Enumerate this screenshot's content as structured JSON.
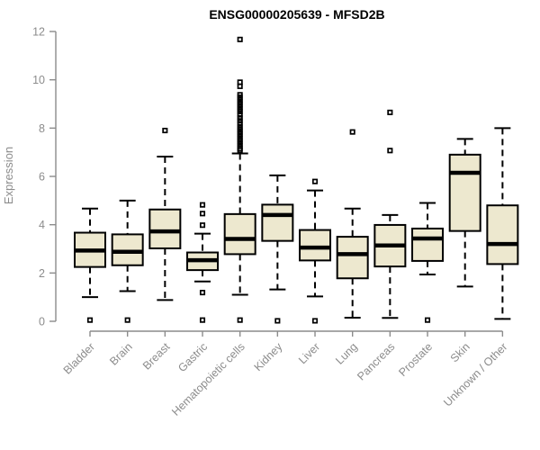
{
  "chart_data": {
    "type": "box",
    "title": "ENSG00000205639 - MFSD2B",
    "ylabel": "Expression",
    "xlabel": "",
    "ylim": [
      0,
      12
    ],
    "yticks": [
      0,
      2,
      4,
      6,
      8,
      10,
      12
    ],
    "grid": false,
    "legend": "none",
    "box_fill_color": "#ede8cf",
    "box_stroke_color": "#000000",
    "axis_color": "#8c8c8c",
    "title_color": "#000000",
    "categories": [
      "Bladder",
      "Brain",
      "Breast",
      "Gastric",
      "Hematopoietic cells",
      "Kidney",
      "Liver",
      "Lung",
      "Pancreas",
      "Prostate",
      "Skin",
      "Unknown / Other"
    ],
    "series": [
      {
        "name": "Bladder",
        "whisker_low": 1.0,
        "q1": 2.25,
        "median": 2.93,
        "q3": 3.67,
        "whisker_high": 4.67,
        "outliers": [
          0.05
        ]
      },
      {
        "name": "Brain",
        "whisker_low": 1.25,
        "q1": 2.32,
        "median": 2.88,
        "q3": 3.6,
        "whisker_high": 5.0,
        "outliers": [
          0.05
        ]
      },
      {
        "name": "Breast",
        "whisker_low": 0.88,
        "q1": 3.02,
        "median": 3.72,
        "q3": 4.63,
        "whisker_high": 6.82,
        "outliers": [
          7.9
        ]
      },
      {
        "name": "Gastric",
        "whisker_low": 1.65,
        "q1": 2.12,
        "median": 2.53,
        "q3": 2.85,
        "whisker_high": 3.63,
        "outliers": [
          4.82,
          4.46,
          3.98,
          1.19,
          0.05
        ]
      },
      {
        "name": "Hematopoietic cells",
        "whisker_low": 1.1,
        "q1": 2.78,
        "median": 3.41,
        "q3": 4.44,
        "whisker_high": 6.95,
        "outliers": [
          11.67,
          9.9,
          9.73,
          9.38,
          9.28,
          9.18,
          9.08,
          8.98,
          8.88,
          8.78,
          8.68,
          8.55,
          8.42,
          8.3,
          8.18,
          8.05,
          7.95,
          7.85,
          7.75,
          7.65,
          7.55,
          7.45,
          7.35,
          7.25,
          7.15,
          7.08,
          0.05
        ]
      },
      {
        "name": "Kidney",
        "whisker_low": 1.32,
        "q1": 3.33,
        "median": 4.4,
        "q3": 4.83,
        "whisker_high": 6.04,
        "outliers": [
          0.02
        ]
      },
      {
        "name": "Liver",
        "whisker_low": 1.03,
        "q1": 2.52,
        "median": 3.05,
        "q3": 3.78,
        "whisker_high": 5.42,
        "outliers": [
          5.79,
          0.02
        ]
      },
      {
        "name": "Lung",
        "whisker_low": 0.15,
        "q1": 1.78,
        "median": 2.78,
        "q3": 3.5,
        "whisker_high": 4.67,
        "outliers": [
          7.84
        ]
      },
      {
        "name": "Pancreas",
        "whisker_low": 0.14,
        "q1": 2.27,
        "median": 3.14,
        "q3": 3.99,
        "whisker_high": 4.4,
        "outliers": [
          8.65,
          7.07
        ]
      },
      {
        "name": "Prostate",
        "whisker_low": 1.94,
        "q1": 2.5,
        "median": 3.43,
        "q3": 3.84,
        "whisker_high": 4.9,
        "outliers": [
          0.05
        ]
      },
      {
        "name": "Skin",
        "whisker_low": 1.44,
        "q1": 3.74,
        "median": 6.15,
        "q3": 6.9,
        "whisker_high": 7.55,
        "outliers": []
      },
      {
        "name": "Unknown / Other",
        "whisker_low": 0.1,
        "q1": 2.37,
        "median": 3.2,
        "q3": 4.8,
        "whisker_high": 8.0,
        "outliers": []
      }
    ]
  }
}
